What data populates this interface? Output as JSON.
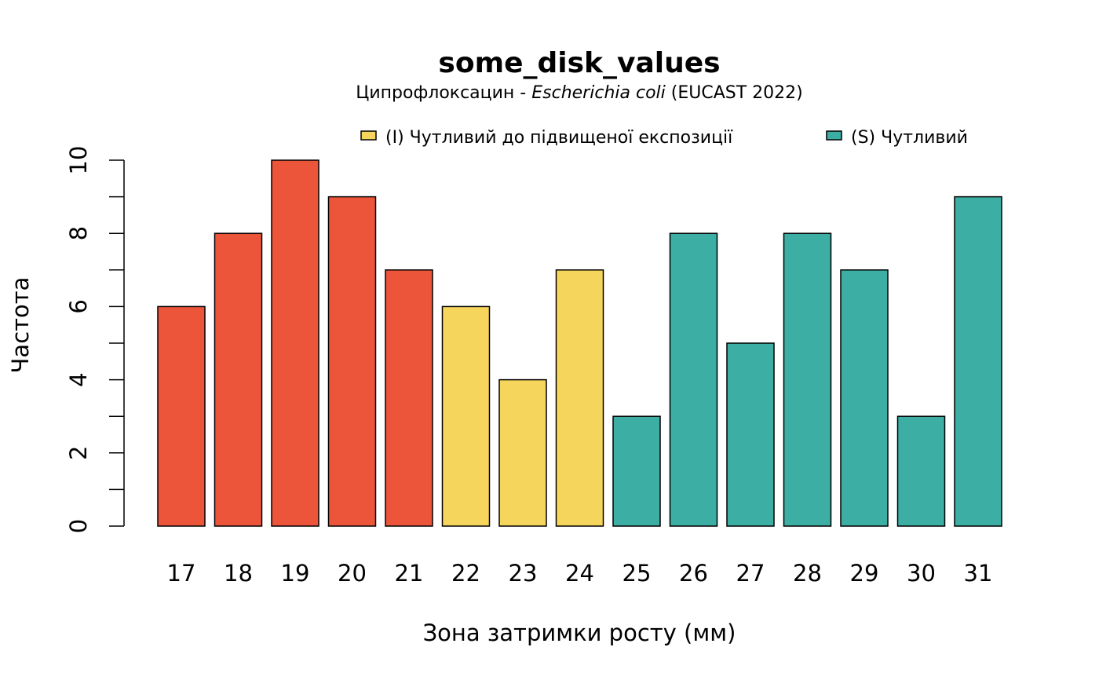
{
  "chart_data": {
    "type": "bar",
    "title": "some_disk_values",
    "subtitle": {
      "drug": "Ципрофлоксацин",
      "separator": " - ",
      "organism": "Escherichia coli",
      "guideline": " (EUCAST 2022)"
    },
    "xlabel": "Зона затримки росту (мм)",
    "ylabel": "Частота",
    "ylim": [
      0,
      10
    ],
    "yticks_labeled": [
      0,
      2,
      4,
      6,
      8,
      10
    ],
    "yticks_minor": [
      1,
      3,
      5,
      7,
      9
    ],
    "categories": [
      "17",
      "18",
      "19",
      "20",
      "21",
      "22",
      "23",
      "24",
      "25",
      "26",
      "27",
      "28",
      "29",
      "30",
      "31"
    ],
    "values": [
      6,
      8,
      10,
      9,
      7,
      6,
      4,
      7,
      3,
      8,
      5,
      8,
      7,
      3,
      9
    ],
    "bar_groups": [
      "R",
      "R",
      "R",
      "R",
      "R",
      "I",
      "I",
      "I",
      "S",
      "S",
      "S",
      "S",
      "S",
      "S",
      "S"
    ],
    "colors": {
      "R": "#ED553B",
      "I": "#F6D55C",
      "S": "#3CAEA3"
    },
    "legend": {
      "position": "top",
      "entries": [
        {
          "group": "I",
          "label": "(I) Чутливий до підвищеної експозиції"
        },
        {
          "group": "S",
          "label": "(S) Чутливий"
        }
      ]
    },
    "grid": false
  }
}
